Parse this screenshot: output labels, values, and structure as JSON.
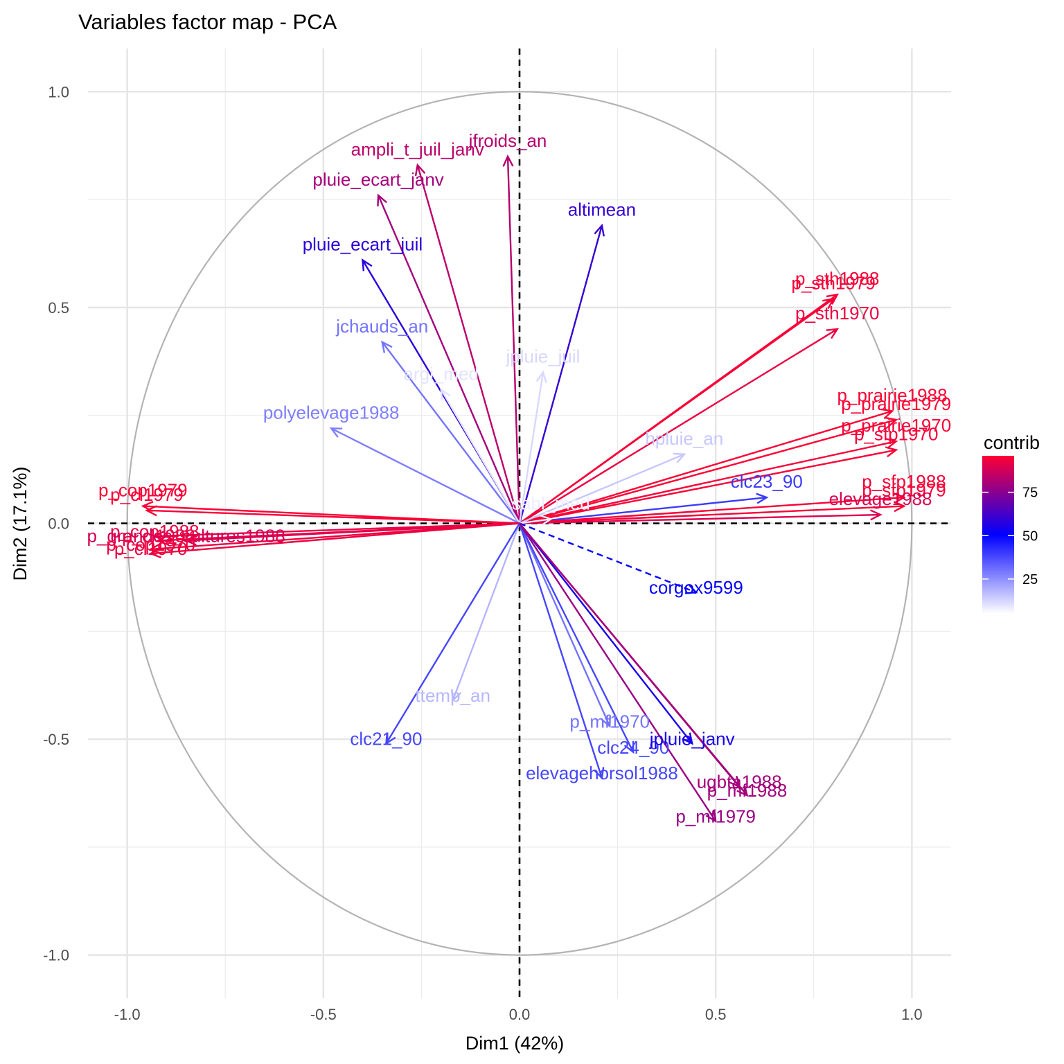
{
  "chart_data": {
    "type": "scatter",
    "title": "Variables factor map - PCA",
    "xlabel": "Dim1 (42%)",
    "ylabel": "Dim2 (17.1%)",
    "xlim": [
      -1.1,
      1.1
    ],
    "ylim": [
      -1.1,
      1.1
    ],
    "xticks": [
      -1.0,
      -0.5,
      0.0,
      0.5,
      1.0
    ],
    "yticks": [
      -1.0,
      -0.5,
      0.0,
      0.5,
      1.0
    ],
    "xtick_labels": [
      "-1.0",
      "-0.5",
      "0.0",
      "0.5",
      "1.0"
    ],
    "ytick_labels": [
      "-1.0",
      "-0.5",
      "0.0",
      "0.5",
      "1.0"
    ],
    "grid": true,
    "correlation_circle": true,
    "legend": {
      "title": "contrib",
      "placement": "right",
      "ticks": [
        25,
        50,
        75
      ],
      "range": [
        5,
        96
      ],
      "colors": {
        "low": "#ffffff",
        "mid": "#0000ff",
        "high": "#ff0033"
      }
    },
    "variables": [
      {
        "name": "ampli_t_juil_janv",
        "x": -0.26,
        "y": 0.83,
        "contrib": 84
      },
      {
        "name": "jfroids_an",
        "x": -0.03,
        "y": 0.85,
        "contrib": 83
      },
      {
        "name": "pluie_ecart_janv",
        "x": -0.36,
        "y": 0.76,
        "contrib": 80
      },
      {
        "name": "altimean",
        "x": 0.21,
        "y": 0.69,
        "contrib": 60
      },
      {
        "name": "pluie_ecart_juil",
        "x": -0.4,
        "y": 0.61,
        "contrib": 58
      },
      {
        "name": "p_sth1988",
        "x": 0.81,
        "y": 0.53,
        "contrib": 95
      },
      {
        "name": "p_sth1979",
        "x": 0.8,
        "y": 0.52,
        "contrib": 95
      },
      {
        "name": "p_sth1970",
        "x": 0.81,
        "y": 0.45,
        "contrib": 93
      },
      {
        "name": "jchauds_an",
        "x": -0.35,
        "y": 0.42,
        "contrib": 30
      },
      {
        "name": "jpluie_juil",
        "x": 0.06,
        "y": 0.35,
        "contrib": 12
      },
      {
        "name": "argi_med",
        "x": -0.2,
        "y": 0.31,
        "contrib": 10
      },
      {
        "name": "polyelevage1988",
        "x": -0.48,
        "y": 0.22,
        "contrib": 28
      },
      {
        "name": "p_prairie1988",
        "x": 0.95,
        "y": 0.26,
        "contrib": 96
      },
      {
        "name": "p_prairie1979",
        "x": 0.96,
        "y": 0.24,
        "contrib": 96
      },
      {
        "name": "p_prairie1970",
        "x": 0.96,
        "y": 0.19,
        "contrib": 95
      },
      {
        "name": "p_sfp1970",
        "x": 0.96,
        "y": 0.17,
        "contrib": 95
      },
      {
        "name": "hpluie_an",
        "x": 0.42,
        "y": 0.16,
        "contrib": 15
      },
      {
        "name": "clc23_90",
        "x": 0.63,
        "y": 0.06,
        "contrib": 40
      },
      {
        "name": "p_sfp1988",
        "x": 0.98,
        "y": 0.06,
        "contrib": 95
      },
      {
        "name": "p_sfp1979",
        "x": 0.98,
        "y": 0.04,
        "contrib": 95
      },
      {
        "name": "elevage1988",
        "x": 0.92,
        "y": 0.02,
        "contrib": 90
      },
      {
        "name": "sabl_med",
        "x": 0.08,
        "y": 0.01,
        "contrib": 8
      },
      {
        "name": "corgox9599",
        "x": 0.45,
        "y": -0.16,
        "contrib": 50
      },
      {
        "name": "p_cop1979",
        "x": -0.96,
        "y": 0.04,
        "contrib": 96
      },
      {
        "name": "p_cl1979",
        "x": -0.95,
        "y": 0.03,
        "contrib": 95
      },
      {
        "name": "p_cop1988",
        "x": -0.93,
        "y": -0.03,
        "contrib": 92
      },
      {
        "name": "p_grandes_cultures1988",
        "x": -0.85,
        "y": -0.04,
        "contrib": 88
      },
      {
        "name": "p_cl1988",
        "x": -0.92,
        "y": -0.04,
        "contrib": 92
      },
      {
        "name": "p_cop1970",
        "x": -0.94,
        "y": -0.06,
        "contrib": 93
      },
      {
        "name": "p_cl1970",
        "x": -0.94,
        "y": -0.07,
        "contrib": 93
      },
      {
        "name": "ttemp_an",
        "x": -0.17,
        "y": -0.41,
        "contrib": 18
      },
      {
        "name": "clc21_90",
        "x": -0.34,
        "y": -0.51,
        "contrib": 38
      },
      {
        "name": "p_mf1970",
        "x": 0.23,
        "y": -0.47,
        "contrib": 30
      },
      {
        "name": "clc24_90",
        "x": 0.29,
        "y": -0.53,
        "contrib": 38
      },
      {
        "name": "jpluie_janv",
        "x": 0.44,
        "y": -0.51,
        "contrib": 55
      },
      {
        "name": "elevagehorsol1988",
        "x": 0.21,
        "y": -0.59,
        "contrib": 38
      },
      {
        "name": "ugbta1988",
        "x": 0.56,
        "y": -0.61,
        "contrib": 80
      },
      {
        "name": "p_mf1988",
        "x": 0.58,
        "y": -0.63,
        "contrib": 80
      },
      {
        "name": "p_mf1979",
        "x": 0.5,
        "y": -0.69,
        "contrib": 78
      }
    ]
  }
}
